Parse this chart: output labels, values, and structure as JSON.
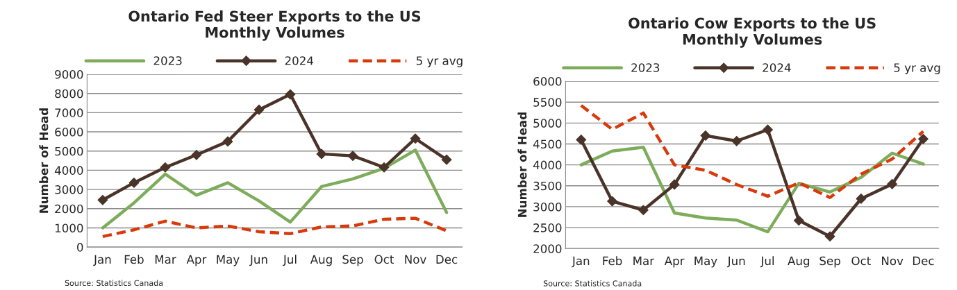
{
  "chart_data": [
    {
      "type": "line",
      "title": "Ontario Fed Steer Exports to the US\nMonthly Volumes",
      "ylabel": "Number of Head",
      "categories": [
        "Jan",
        "Feb",
        "Mar",
        "Apr",
        "May",
        "Jun",
        "Jul",
        "Aug",
        "Sep",
        "Oct",
        "Nov",
        "Dec"
      ],
      "series": [
        {
          "name": "2023",
          "color": "#7dac5a",
          "marker": "none",
          "line_style": "solid",
          "values": [
            1000,
            2300,
            3800,
            2700,
            3350,
            2400,
            1300,
            3150,
            3550,
            4100,
            5050,
            1800
          ]
        },
        {
          "name": "2024",
          "color": "#4a3328",
          "marker": "diamond",
          "line_style": "solid",
          "values": [
            2450,
            3350,
            4150,
            4800,
            5500,
            7150,
            7950,
            4850,
            4750,
            4150,
            5650,
            4550
          ]
        },
        {
          "name": "5 yr avg",
          "color": "#d83a0c",
          "marker": "none",
          "line_style": "dashed",
          "values": [
            550,
            900,
            1350,
            1000,
            1100,
            800,
            700,
            1050,
            1100,
            1450,
            1500,
            850
          ]
        }
      ],
      "ylim": [
        0,
        9000
      ],
      "yticks": [
        0,
        1000,
        2000,
        3000,
        4000,
        5000,
        6000,
        7000,
        8000,
        9000
      ],
      "grid": "y",
      "legend": "top",
      "annotations": [
        "Source: Statistics Canada"
      ]
    },
    {
      "type": "line",
      "title": "Ontario Cow Exports to the US\nMonthly Volumes",
      "ylabel": "Number of Head",
      "categories": [
        "Jan",
        "Feb",
        "Mar",
        "Apr",
        "May",
        "Jun",
        "Jul",
        "Aug",
        "Sep",
        "Oct",
        "Nov",
        "Dec"
      ],
      "series": [
        {
          "name": "2023",
          "color": "#7dac5a",
          "marker": "none",
          "line_style": "solid",
          "values": [
            4000,
            4330,
            4420,
            2850,
            2730,
            2680,
            2400,
            3560,
            3350,
            3700,
            4280,
            4020
          ]
        },
        {
          "name": "2024",
          "color": "#4a3328",
          "marker": "diamond",
          "line_style": "solid",
          "values": [
            4600,
            3130,
            2920,
            3530,
            4700,
            4570,
            4840,
            2670,
            2290,
            3190,
            3540,
            4620
          ]
        },
        {
          "name": "5 yr avg",
          "color": "#d83a0c",
          "marker": "none",
          "line_style": "dashed",
          "values": [
            5420,
            4850,
            5240,
            4000,
            3870,
            3530,
            3250,
            3570,
            3220,
            3780,
            4140,
            4800
          ]
        }
      ],
      "ylim": [
        2000,
        6000
      ],
      "yticks": [
        2000,
        2500,
        3000,
        3500,
        4000,
        4500,
        5000,
        5500,
        6000
      ],
      "grid": "y",
      "legend": "top",
      "annotations": [
        "Source: Statistics Canada"
      ]
    }
  ]
}
